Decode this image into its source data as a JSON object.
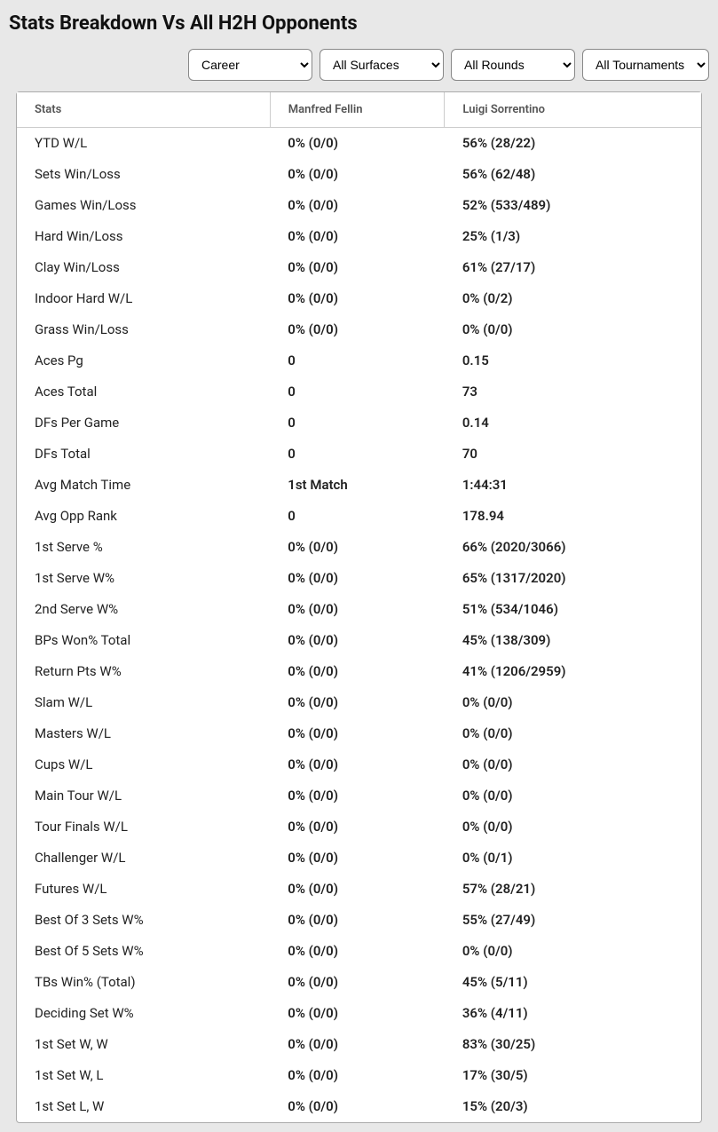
{
  "title": "Stats Breakdown Vs All H2H Opponents",
  "filters": {
    "period": "Career",
    "surface": "All Surfaces",
    "round": "All Rounds",
    "tournament": "All Tournaments"
  },
  "columns": {
    "stat": "Stats",
    "p1": "Manfred Fellin",
    "p2": "Luigi Sorrentino"
  },
  "rows": [
    {
      "stat": "YTD W/L",
      "p1": "0% (0/0)",
      "p2": "56% (28/22)"
    },
    {
      "stat": "Sets Win/Loss",
      "p1": "0% (0/0)",
      "p2": "56% (62/48)"
    },
    {
      "stat": "Games Win/Loss",
      "p1": "0% (0/0)",
      "p2": "52% (533/489)"
    },
    {
      "stat": "Hard Win/Loss",
      "p1": "0% (0/0)",
      "p2": "25% (1/3)"
    },
    {
      "stat": "Clay Win/Loss",
      "p1": "0% (0/0)",
      "p2": "61% (27/17)"
    },
    {
      "stat": "Indoor Hard W/L",
      "p1": "0% (0/0)",
      "p2": "0% (0/2)"
    },
    {
      "stat": "Grass Win/Loss",
      "p1": "0% (0/0)",
      "p2": "0% (0/0)"
    },
    {
      "stat": "Aces Pg",
      "p1": "0",
      "p2": "0.15"
    },
    {
      "stat": "Aces Total",
      "p1": "0",
      "p2": "73"
    },
    {
      "stat": "DFs Per Game",
      "p1": "0",
      "p2": "0.14"
    },
    {
      "stat": "DFs Total",
      "p1": "0",
      "p2": "70"
    },
    {
      "stat": "Avg Match Time",
      "p1": "1st Match",
      "p2": "1:44:31"
    },
    {
      "stat": "Avg Opp Rank",
      "p1": "0",
      "p2": "178.94"
    },
    {
      "stat": "1st Serve %",
      "p1": "0% (0/0)",
      "p2": "66% (2020/3066)"
    },
    {
      "stat": "1st Serve W%",
      "p1": "0% (0/0)",
      "p2": "65% (1317/2020)"
    },
    {
      "stat": "2nd Serve W%",
      "p1": "0% (0/0)",
      "p2": "51% (534/1046)"
    },
    {
      "stat": "BPs Won% Total",
      "p1": "0% (0/0)",
      "p2": "45% (138/309)"
    },
    {
      "stat": "Return Pts W%",
      "p1": "0% (0/0)",
      "p2": "41% (1206/2959)"
    },
    {
      "stat": "Slam W/L",
      "p1": "0% (0/0)",
      "p2": "0% (0/0)"
    },
    {
      "stat": "Masters W/L",
      "p1": "0% (0/0)",
      "p2": "0% (0/0)"
    },
    {
      "stat": "Cups W/L",
      "p1": "0% (0/0)",
      "p2": "0% (0/0)"
    },
    {
      "stat": "Main Tour W/L",
      "p1": "0% (0/0)",
      "p2": "0% (0/0)"
    },
    {
      "stat": "Tour Finals W/L",
      "p1": "0% (0/0)",
      "p2": "0% (0/0)"
    },
    {
      "stat": "Challenger W/L",
      "p1": "0% (0/0)",
      "p2": "0% (0/1)"
    },
    {
      "stat": "Futures W/L",
      "p1": "0% (0/0)",
      "p2": "57% (28/21)"
    },
    {
      "stat": "Best Of 3 Sets W%",
      "p1": "0% (0/0)",
      "p2": "55% (27/49)"
    },
    {
      "stat": "Best Of 5 Sets W%",
      "p1": "0% (0/0)",
      "p2": "0% (0/0)"
    },
    {
      "stat": "TBs Win% (Total)",
      "p1": "0% (0/0)",
      "p2": "45% (5/11)"
    },
    {
      "stat": "Deciding Set W%",
      "p1": "0% (0/0)",
      "p2": "36% (4/11)"
    },
    {
      "stat": "1st Set W, W",
      "p1": "0% (0/0)",
      "p2": "83% (30/25)"
    },
    {
      "stat": "1st Set W, L",
      "p1": "0% (0/0)",
      "p2": "17% (30/5)"
    },
    {
      "stat": "1st Set L, W",
      "p1": "0% (0/0)",
      "p2": "15% (20/3)"
    }
  ]
}
